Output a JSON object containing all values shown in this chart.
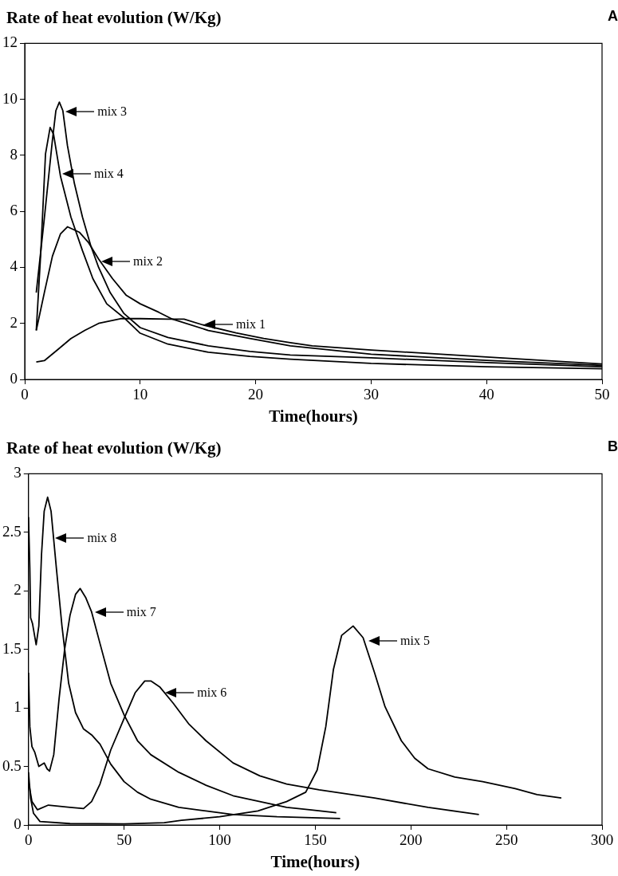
{
  "chart_data": [
    {
      "type": "line",
      "title": "A",
      "ylabel": "Rate of heat evolution (W/Kg)",
      "xlabel": "Time(hours)",
      "xlim": [
        0,
        50
      ],
      "xticks": [
        0,
        10,
        20,
        30,
        40,
        50
      ],
      "ylim": [
        0,
        12
      ],
      "yticks": [
        0,
        2,
        4,
        6,
        8,
        10,
        12
      ],
      "grid": false,
      "legend": false,
      "marker": "none",
      "line_style": "solid",
      "series": [
        {
          "color": "#000000",
          "x": [
            1.0,
            1.7,
            2.85,
            4.0,
            5.2,
            6.4,
            8.3,
            10,
            12.4,
            13.8,
            15.4,
            18.3,
            20.7,
            23,
            24.9,
            30,
            40,
            50
          ],
          "values": [
            0.62,
            0.67,
            1.06,
            1.46,
            1.75,
            2.0,
            2.17,
            2.17,
            2.15,
            2.15,
            1.95,
            1.66,
            1.46,
            1.31,
            1.2,
            1.05,
            0.8,
            0.55
          ]
        },
        {
          "color": "#000000",
          "x": [
            1.0,
            1.7,
            2.4,
            3.1,
            3.7,
            4.75,
            5.5,
            6.4,
            7.6,
            8.8,
            10,
            11.6,
            12.8,
            15.9,
            19.5,
            23,
            30,
            40,
            50
          ],
          "values": [
            1.75,
            3.1,
            4.4,
            5.2,
            5.45,
            5.25,
            4.9,
            4.3,
            3.6,
            3.0,
            2.7,
            2.4,
            2.15,
            1.75,
            1.46,
            1.2,
            0.9,
            0.68,
            0.5
          ]
        },
        {
          "color": "#000000",
          "x": [
            1.0,
            1.66,
            2.4,
            2.7,
            3.0,
            3.3,
            3.7,
            4.3,
            5.0,
            5.7,
            6.4,
            7.4,
            8.6,
            10,
            12.4,
            15.9,
            19.5,
            23,
            30,
            40,
            50
          ],
          "values": [
            3.1,
            5.6,
            8.55,
            9.6,
            9.9,
            9.6,
            8.35,
            7.0,
            5.8,
            4.8,
            4.0,
            3.1,
            2.35,
            1.85,
            1.5,
            1.2,
            1.0,
            0.87,
            0.77,
            0.6,
            0.45
          ]
        },
        {
          "color": "#000000",
          "x": [
            1.0,
            1.4,
            1.8,
            2.2,
            2.5,
            3.1,
            4.0,
            5.0,
            5.9,
            7.1,
            8.6,
            10,
            12.4,
            15.9,
            19.5,
            23,
            30,
            40,
            50
          ],
          "values": [
            1.75,
            4.6,
            8.05,
            9.0,
            8.75,
            7.25,
            5.8,
            4.6,
            3.6,
            2.7,
            2.2,
            1.65,
            1.26,
            0.97,
            0.82,
            0.72,
            0.57,
            0.45,
            0.38
          ]
        }
      ],
      "annotations": [
        {
          "text": "mix 3",
          "x": 3.4,
          "y": 9.55
        },
        {
          "text": "mix 4",
          "x": 3.1,
          "y": 7.35
        },
        {
          "text": "mix 2",
          "x": 6.5,
          "y": 4.2
        },
        {
          "text": "mix 1",
          "x": 15.4,
          "y": 1.95
        }
      ]
    },
    {
      "type": "line",
      "title": "B",
      "ylabel": "Rate of heat evolution (W/Kg)",
      "xlabel": "Time(hours)",
      "xlim": [
        0,
        300
      ],
      "xticks": [
        0,
        50,
        100,
        150,
        200,
        250,
        300
      ],
      "ylim": [
        0,
        3
      ],
      "yticks": [
        0,
        0.5,
        1,
        1.5,
        2,
        2.5,
        3
      ],
      "grid": false,
      "legend": false,
      "marker": "none",
      "line_style": "solid",
      "series": [
        {
          "color": "#000000",
          "x": [
            0,
            1.1,
            2.6,
            6,
            21.7,
            50,
            71,
            80,
            100,
            120,
            135,
            145,
            151,
            155.5,
            159.5,
            163.8,
            169.8,
            175,
            181,
            186.5,
            195,
            202,
            209,
            223,
            237.6,
            254.6,
            266,
            278.7
          ],
          "values": [
            0.45,
            0.23,
            0.1,
            0.03,
            0.012,
            0.01,
            0.02,
            0.04,
            0.07,
            0.12,
            0.2,
            0.28,
            0.47,
            0.84,
            1.33,
            1.62,
            1.7,
            1.6,
            1.3,
            1.01,
            0.72,
            0.57,
            0.48,
            0.41,
            0.37,
            0.31,
            0.26,
            0.23
          ]
        },
        {
          "color": "#000000",
          "x": [
            0,
            1.8,
            4.7,
            10.4,
            21.7,
            28.8,
            33,
            37.4,
            43,
            50,
            55.8,
            60.8,
            64,
            68.6,
            75.7,
            84,
            92.8,
            107,
            121,
            135,
            152,
            181,
            209,
            235.6
          ],
          "values": [
            0.37,
            0.2,
            0.13,
            0.17,
            0.15,
            0.14,
            0.2,
            0.35,
            0.64,
            0.91,
            1.13,
            1.23,
            1.23,
            1.18,
            1.04,
            0.86,
            0.72,
            0.53,
            0.42,
            0.35,
            0.3,
            0.23,
            0.15,
            0.09
          ]
        },
        {
          "color": "#000000",
          "x": [
            0,
            0.7,
            1.8,
            3.3,
            5.4,
            8.2,
            9.7,
            11,
            13.2,
            16,
            18.9,
            21.7,
            24.6,
            27,
            30,
            33,
            37.4,
            43,
            50,
            57,
            64,
            78.6,
            92.8,
            107,
            121,
            135,
            147,
            161
          ],
          "values": [
            1.3,
            0.84,
            0.67,
            0.62,
            0.5,
            0.53,
            0.48,
            0.46,
            0.6,
            1.08,
            1.5,
            1.79,
            1.97,
            2.02,
            1.94,
            1.82,
            1.55,
            1.21,
            0.94,
            0.72,
            0.6,
            0.45,
            0.34,
            0.25,
            0.2,
            0.15,
            0.13,
            0.105
          ]
        },
        {
          "color": "#000000",
          "x": [
            0,
            0.7,
            1.1,
            2.1,
            4,
            5.4,
            6.8,
            8.2,
            10,
            11.8,
            14.6,
            17.5,
            21,
            24.6,
            28.8,
            33,
            37.4,
            43,
            50,
            57,
            64,
            78.6,
            92.8,
            107,
            130,
            163
          ],
          "values": [
            2.63,
            2.19,
            1.77,
            1.72,
            1.54,
            1.7,
            2.31,
            2.68,
            2.8,
            2.68,
            2.19,
            1.7,
            1.21,
            0.96,
            0.82,
            0.77,
            0.69,
            0.52,
            0.37,
            0.28,
            0.22,
            0.15,
            0.12,
            0.09,
            0.07,
            0.056
          ]
        }
      ],
      "annotations": [
        {
          "text": "mix 8",
          "x": 13.2,
          "y": 2.45
        },
        {
          "text": "mix 7",
          "x": 33.8,
          "y": 1.82
        },
        {
          "text": "mix 6",
          "x": 70.7,
          "y": 1.13
        },
        {
          "text": "mix 5",
          "x": 177,
          "y": 1.57
        }
      ]
    }
  ]
}
